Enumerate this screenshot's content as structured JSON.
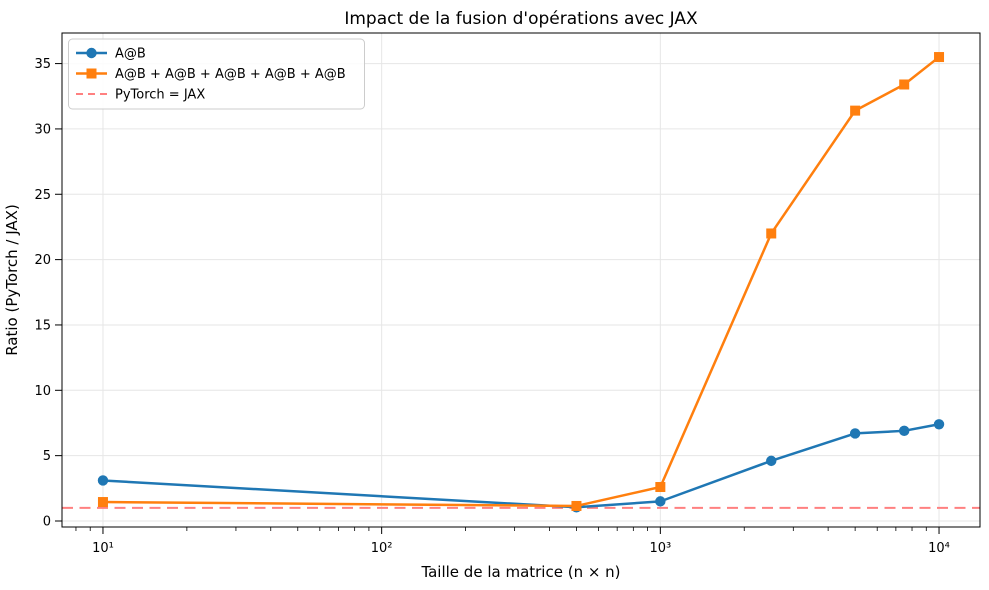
{
  "chart_data": {
    "type": "line",
    "title": "Impact de la fusion d'opérations avec JAX",
    "xlabel": "Taille de la matrice (n × n)",
    "ylabel": "Ratio (PyTorch / JAX)",
    "x_scale": "log",
    "x": [
      10,
      500,
      1000,
      2500,
      5000,
      7500,
      10000
    ],
    "series": [
      {
        "name": "A@B",
        "color": "#1f77b4",
        "marker": "circle",
        "values": [
          3.1,
          1.05,
          1.5,
          4.6,
          6.7,
          6.9,
          7.4
        ]
      },
      {
        "name": "A@B + A@B + A@B + A@B + A@B",
        "color": "#ff7f0e",
        "marker": "square",
        "values": [
          1.45,
          1.15,
          2.6,
          22.0,
          31.4,
          33.4,
          35.5
        ]
      }
    ],
    "reference_line": {
      "name": "PyTorch = JAX",
      "y": 1,
      "color": "#ff8080",
      "style": "dashed"
    },
    "x_ticks": [
      10,
      100,
      1000,
      10000
    ],
    "x_tick_labels": [
      "10¹",
      "10²",
      "10³",
      "10⁴"
    ],
    "y_ticks": [
      0,
      5,
      10,
      15,
      20,
      25,
      30,
      35
    ],
    "xlim_log": [
      0.853,
      4.147
    ],
    "ylim": [
      -0.46,
      37.34
    ],
    "grid": true,
    "legend_position": "upper left",
    "colors": {
      "grid": "#e6e6e6",
      "spine": "#000000",
      "background": "#ffffff",
      "legend_border": "#cccccc",
      "legend_fill": "#ffffff"
    }
  }
}
